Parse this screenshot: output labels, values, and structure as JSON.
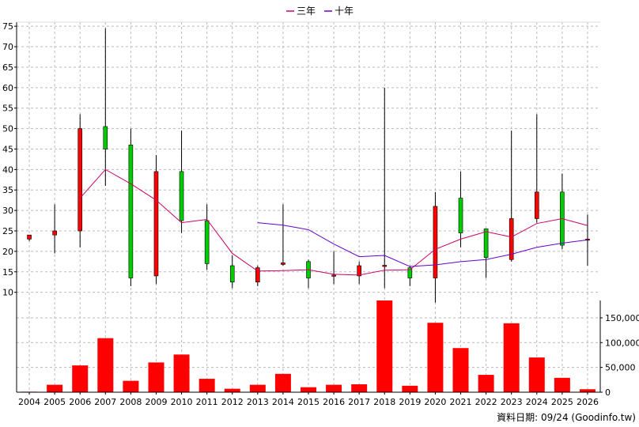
{
  "chart_data": {
    "type": "candlestick",
    "legend": [
      {
        "name": "三年",
        "color": "#cc0066"
      },
      {
        "name": "十年",
        "color": "#6600cc"
      }
    ],
    "legend_position": "top-center",
    "grid": true,
    "colors": {
      "up": "#ff0000",
      "down": "#00cc00",
      "volume": "#ff0000"
    },
    "x_categories": [
      "2004",
      "2005",
      "2006",
      "2007",
      "2008",
      "2009",
      "2010",
      "2011",
      "2012",
      "2013",
      "2014",
      "2015",
      "2016",
      "2017",
      "2018",
      "2019",
      "2020",
      "2021",
      "2022",
      "2023",
      "2024",
      "2025",
      "2026"
    ],
    "price_axis": {
      "position": "left",
      "ylim": [
        8,
        76
      ],
      "ticks": [
        10,
        15,
        20,
        25,
        30,
        35,
        40,
        45,
        50,
        55,
        60,
        65,
        70,
        75
      ]
    },
    "volume_axis": {
      "position": "right",
      "ylim": [
        0,
        185000
      ],
      "ticks": [
        0,
        50000,
        100000,
        150000
      ],
      "tick_labels": [
        "0",
        "50,000",
        "100,000",
        "150,000"
      ]
    },
    "candles": [
      {
        "x": "2004",
        "open": 23.0,
        "high": 24.0,
        "low": 22.5,
        "close": 24.0
      },
      {
        "x": "2005",
        "open": 24.0,
        "high": 31.5,
        "low": 19.5,
        "close": 25.0
      },
      {
        "x": "2006",
        "open": 25.0,
        "high": 53.5,
        "low": 21.0,
        "close": 50.0
      },
      {
        "x": "2007",
        "open": 50.5,
        "high": 74.5,
        "low": 36.0,
        "close": 45.0
      },
      {
        "x": "2008",
        "open": 46.0,
        "high": 50.0,
        "low": 11.5,
        "close": 13.5
      },
      {
        "x": "2009",
        "open": 14.0,
        "high": 43.5,
        "low": 12.0,
        "close": 39.5
      },
      {
        "x": "2010",
        "open": 39.5,
        "high": 49.5,
        "low": 24.5,
        "close": 27.5
      },
      {
        "x": "2011",
        "open": 27.5,
        "high": 31.5,
        "low": 15.5,
        "close": 17.0
      },
      {
        "x": "2012",
        "open": 16.5,
        "high": 19.0,
        "low": 11.0,
        "close": 12.5
      },
      {
        "x": "2013",
        "open": 12.5,
        "high": 16.5,
        "low": 11.5,
        "close": 16.0
      },
      {
        "x": "2014",
        "open": 16.8,
        "high": 31.5,
        "low": 16.5,
        "close": 17.2
      },
      {
        "x": "2015",
        "open": 17.5,
        "high": 18.0,
        "low": 11.0,
        "close": 13.5
      },
      {
        "x": "2016",
        "open": 14.0,
        "high": 20.0,
        "low": 12.0,
        "close": 14.2
      },
      {
        "x": "2017",
        "open": 14.0,
        "high": 17.5,
        "low": 12.0,
        "close": 16.5
      },
      {
        "x": "2018",
        "open": 16.3,
        "high": 60.0,
        "low": 11.0,
        "close": 16.6
      },
      {
        "x": "2019",
        "open": 16.0,
        "high": 16.5,
        "low": 11.5,
        "close": 13.5
      },
      {
        "x": "2020",
        "open": 13.5,
        "high": 34.5,
        "low": 7.5,
        "close": 31.0
      },
      {
        "x": "2021",
        "open": 33.0,
        "high": 39.5,
        "low": 21.0,
        "close": 24.5
      },
      {
        "x": "2022",
        "open": 25.5,
        "high": 25.5,
        "low": 13.5,
        "close": 18.5
      },
      {
        "x": "2023",
        "open": 18.0,
        "high": 49.5,
        "low": 17.5,
        "close": 28.0
      },
      {
        "x": "2024",
        "open": 28.0,
        "high": 53.5,
        "low": 27.0,
        "close": 34.5
      },
      {
        "x": "2025",
        "open": 34.5,
        "high": 39.0,
        "low": 20.5,
        "close": 21.5
      },
      {
        "x": "2026",
        "open": 23.0,
        "high": 29.0,
        "low": 16.5,
        "close": 23.0
      }
    ],
    "lines": [
      {
        "name": "三年",
        "color": "#cc0066",
        "points": [
          [
            "2006",
            33.0
          ],
          [
            "2007",
            40.0
          ],
          [
            "2008",
            36.5
          ],
          [
            "2009",
            32.5
          ],
          [
            "2010",
            27.0
          ],
          [
            "2011",
            27.8
          ],
          [
            "2012",
            19.5
          ],
          [
            "2013",
            15.2
          ],
          [
            "2014",
            15.3
          ],
          [
            "2015",
            15.5
          ],
          [
            "2016",
            14.4
          ],
          [
            "2017",
            14.2
          ],
          [
            "2018",
            15.4
          ],
          [
            "2019",
            15.5
          ],
          [
            "2020",
            20.5
          ],
          [
            "2021",
            23.0
          ],
          [
            "2022",
            24.8
          ],
          [
            "2023",
            23.5
          ],
          [
            "2024",
            26.8
          ],
          [
            "2025",
            28.0
          ],
          [
            "2026",
            26.3
          ]
        ]
      },
      {
        "name": "十年",
        "color": "#6600cc",
        "points": [
          [
            "2013",
            27.0
          ],
          [
            "2014",
            26.4
          ],
          [
            "2015",
            25.3
          ],
          [
            "2016",
            21.8
          ],
          [
            "2017",
            18.7
          ],
          [
            "2018",
            19.0
          ],
          [
            "2019",
            16.3
          ],
          [
            "2020",
            16.7
          ],
          [
            "2021",
            17.5
          ],
          [
            "2022",
            18.0
          ],
          [
            "2023",
            19.3
          ],
          [
            "2024",
            21.0
          ],
          [
            "2025",
            22.0
          ],
          [
            "2026",
            22.8
          ]
        ]
      }
    ],
    "volume": [
      {
        "x": "2004",
        "value": 1000
      },
      {
        "x": "2005",
        "value": 15000
      },
      {
        "x": "2006",
        "value": 54000
      },
      {
        "x": "2007",
        "value": 109000
      },
      {
        "x": "2008",
        "value": 23000
      },
      {
        "x": "2009",
        "value": 60000
      },
      {
        "x": "2010",
        "value": 76000
      },
      {
        "x": "2011",
        "value": 27000
      },
      {
        "x": "2012",
        "value": 7000
      },
      {
        "x": "2013",
        "value": 15000
      },
      {
        "x": "2014",
        "value": 37000
      },
      {
        "x": "2015",
        "value": 10000
      },
      {
        "x": "2016",
        "value": 15000
      },
      {
        "x": "2017",
        "value": 16000
      },
      {
        "x": "2018",
        "value": 185000
      },
      {
        "x": "2019",
        "value": 13000
      },
      {
        "x": "2020",
        "value": 140000
      },
      {
        "x": "2021",
        "value": 89000
      },
      {
        "x": "2022",
        "value": 35000
      },
      {
        "x": "2023",
        "value": 139000
      },
      {
        "x": "2024",
        "value": 70000
      },
      {
        "x": "2025",
        "value": 29000
      },
      {
        "x": "2026",
        "value": 6000
      }
    ]
  },
  "footer": {
    "source_label": "資料日期: 09/24  (Goodinfo.tw)"
  }
}
